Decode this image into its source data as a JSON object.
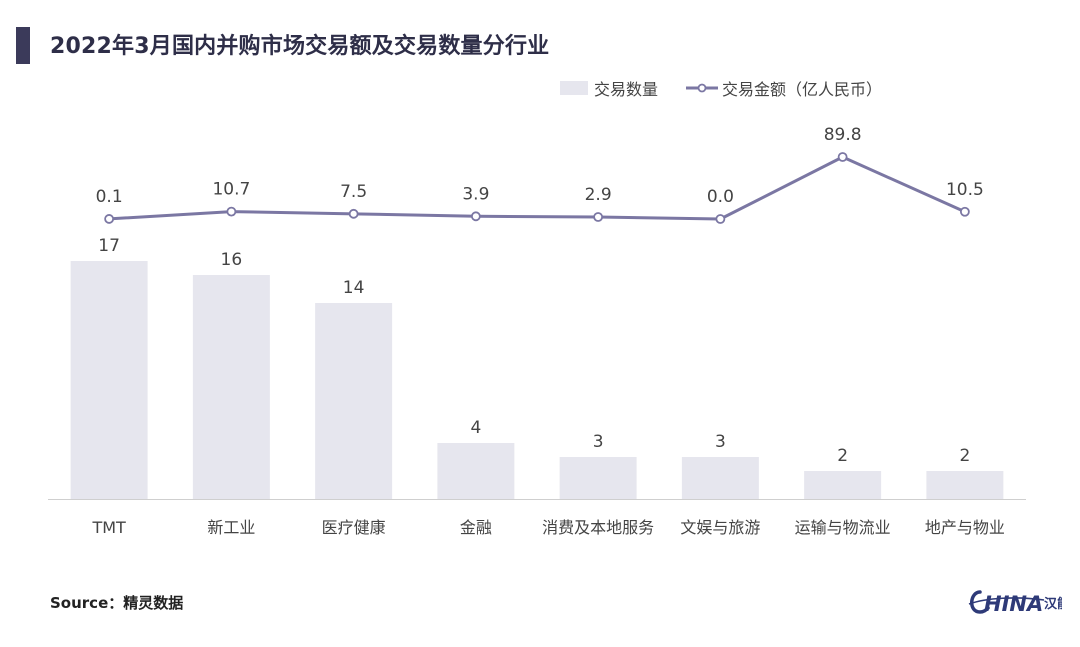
{
  "title": "2022年3月国内并购市场交易额及交易数量分行业",
  "source_text": "Source：精灵数据",
  "logo": {
    "text": "HINA",
    "glyph": "汉能"
  },
  "colors": {
    "accent": "#3b3a5a",
    "bar": "#e6e6ee",
    "line": "#7b77a3",
    "axis": "#cfcfcf",
    "text": "#444444"
  },
  "chart_data": {
    "type": "bar",
    "categories": [
      "TMT",
      "新工业",
      "医疗健康",
      "金融",
      "消费及本地服务",
      "文娱与旅游",
      "运输与物流业",
      "地产与物业"
    ],
    "series": [
      {
        "name": "交易数量",
        "type": "bar",
        "values": [
          17,
          16,
          14,
          4,
          3,
          3,
          2,
          2
        ],
        "labels": [
          "17",
          "16",
          "14",
          "4",
          "3",
          "3",
          "2",
          "2"
        ]
      },
      {
        "name": "交易金额（亿人民币）",
        "type": "line",
        "values": [
          0.1,
          10.7,
          7.5,
          3.9,
          2.9,
          0.0,
          89.8,
          10.5
        ],
        "labels": [
          "0.1",
          "10.7",
          "7.5",
          "3.9",
          "2.9",
          "0.0",
          "89.8",
          "10.5"
        ]
      }
    ],
    "legend_position": "top-right",
    "grid": false
  }
}
